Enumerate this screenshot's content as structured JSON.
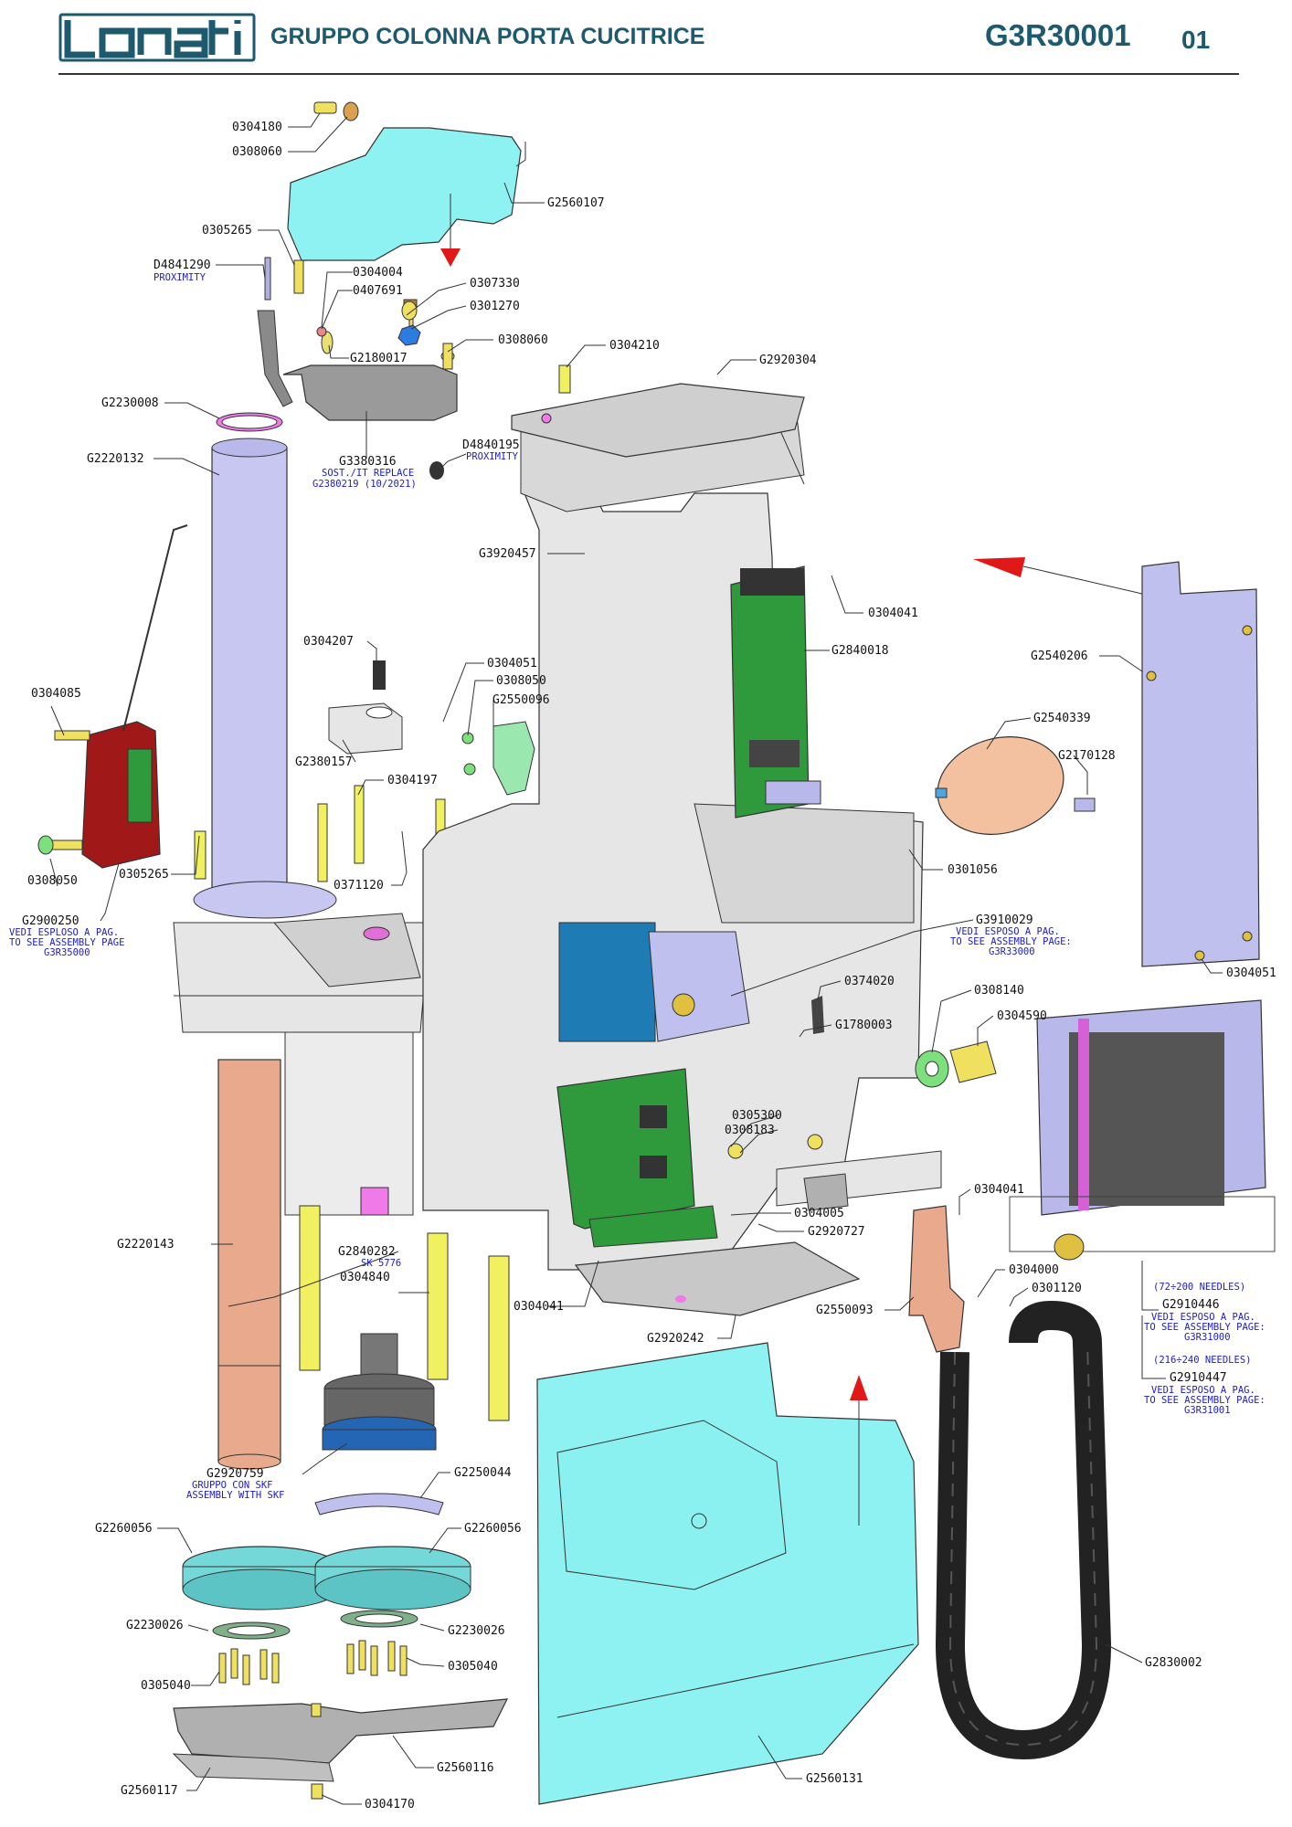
{
  "header": {
    "logo_text": "lonati",
    "title": "GRUPPO COLONNA PORTA CUCITRICE",
    "code": "G3R30001",
    "page": "01"
  },
  "colors": {
    "brand": "#1d5a6e",
    "cyan_cover": "#8ff2f2",
    "frame_grey": "#e6e6e6",
    "pcb_green": "#2f9a3c",
    "column_lavender": "#c7c7f2",
    "copper": "#e8a98c",
    "note_blue": "#1b1bd0",
    "arrow_red": "#e01818"
  },
  "labels": [
    "0304180",
    "0308060",
    "G2560107",
    "0305265",
    "D4841290",
    "0304004",
    "0407691",
    "0307330",
    "0301270",
    "0308060",
    "G2180017",
    "0304210",
    "G2920304",
    "G2230008",
    "G3380316",
    "D4840195",
    "G2220132",
    "G3920457",
    "0304041",
    "G2840018",
    "G2540206",
    "0304207",
    "0304051",
    "0308050",
    "G2550096",
    "G2540339",
    "G2170128",
    "0304085",
    "G2380157",
    "0304197",
    "0308050",
    "0305265",
    "0371120",
    "0301056",
    "G2900250",
    "G3910029",
    "0374020",
    "G1780003",
    "0308140",
    "0304590",
    "0304051",
    "0305300",
    "0308183",
    "0304041",
    "0304005",
    "G2920727",
    "G2220143",
    "G2840282",
    "0304840",
    "0304041",
    "0304000",
    "0301120",
    "G2550093",
    "G2910446",
    "G2910447",
    "G2920242",
    "G2920759",
    "G2250044",
    "G2260056",
    "G2260056",
    "G2230026",
    "G2230026",
    "0305040",
    "0305040",
    "G2830002",
    "G2560116",
    "G2560131",
    "G2560117",
    "0304170"
  ],
  "notes": {
    "proximity_1": "PROXIMITY",
    "proximity_2": "PROXIMITY",
    "sost_1": "SOST./IT REPLACE",
    "sost_2": "G2380219 (10/2021)",
    "g2900250_1": "VEDI ESPLOSO A PAG.",
    "g2900250_2": "TO SEE ASSEMBLY PAGE",
    "g2900250_3": "G3R35000",
    "g3910029_1": "VEDI ESPOSO A PAG.",
    "g3910029_2": "TO SEE ASSEMBLY PAGE:",
    "g3910029_3": "G3R33000",
    "sk": "SK 5776",
    "needles_1": "(72÷200 NEEDLES)",
    "g2910446_1": "VEDI ESPOSO A PAG.",
    "g2910446_2": "TO SEE ASSEMBLY PAGE:",
    "g2910446_3": "G3R31000",
    "needles_2": "(216÷240 NEEDLES)",
    "g2910447_1": "VEDI ESPOSO A PAG.",
    "g2910447_2": "TO SEE ASSEMBLY PAGE:",
    "g2910447_3": "G3R31001",
    "g2920759_1": "GRUPPO CON SKF",
    "g2920759_2": "ASSEMBLY WITH SKF"
  }
}
